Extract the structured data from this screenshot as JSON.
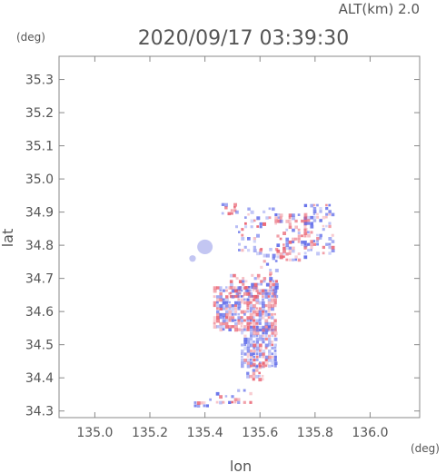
{
  "header": {
    "alt_label": "ALT(km)  2.0",
    "timestamp": "2020/09/17 03:39:30"
  },
  "chart_data": {
    "type": "heatmap",
    "title": "2020/09/17 03:39:30",
    "xlabel": "lon",
    "ylabel": "lat",
    "xunit": "(deg)",
    "yunit": "(deg)",
    "xlim": [
      134.87,
      136.18
    ],
    "ylim": [
      34.28,
      35.37
    ],
    "xticks": [
      135.0,
      135.2,
      135.4,
      135.6,
      135.8,
      136.0
    ],
    "yticks": [
      34.3,
      34.4,
      34.5,
      34.6,
      34.7,
      34.8,
      34.9,
      35.0,
      35.1,
      35.2,
      35.3
    ],
    "xtick_labels": [
      "135.0",
      "135.2",
      "135.4",
      "135.6",
      "135.8",
      "136.0"
    ],
    "ytick_labels": [
      "34.3",
      "34.4",
      "34.5",
      "34.6",
      "34.7",
      "34.8",
      "34.9",
      "35.0",
      "35.1",
      "35.2",
      "35.3"
    ],
    "grid": false,
    "colors": {
      "positive": "#e85a6a",
      "negative": "#5a66e8",
      "neutral": "#b8bcf0"
    },
    "regions": [
      {
        "lon": [
          135.46,
          135.51
        ],
        "lat": [
          34.9,
          34.94
        ],
        "density": 0.5,
        "bias": 0.6
      },
      {
        "lon": [
          135.51,
          135.67
        ],
        "lat": [
          34.86,
          34.92
        ],
        "density": 0.25,
        "bias": 0.4
      },
      {
        "lon": [
          135.66,
          135.76
        ],
        "lat": [
          34.76,
          34.9
        ],
        "density": 0.5,
        "bias": 0.7
      },
      {
        "lon": [
          135.76,
          135.86
        ],
        "lat": [
          34.78,
          34.93
        ],
        "density": 0.45,
        "bias": 0.3
      },
      {
        "lon": [
          135.52,
          135.6
        ],
        "lat": [
          34.78,
          34.86
        ],
        "density": 0.2,
        "bias": 0.3
      },
      {
        "lon": [
          135.6,
          135.66
        ],
        "lat": [
          34.72,
          34.8
        ],
        "density": 0.35,
        "bias": 0.4
      },
      {
        "lon": [
          135.49,
          135.66
        ],
        "lat": [
          34.65,
          34.72
        ],
        "density": 0.55,
        "bias": 0.6
      },
      {
        "lon": [
          135.43,
          135.66
        ],
        "lat": [
          34.55,
          34.68
        ],
        "density": 0.75,
        "bias": 0.6
      },
      {
        "lon": [
          135.53,
          135.66
        ],
        "lat": [
          34.44,
          34.56
        ],
        "density": 0.8,
        "bias": 0.35
      },
      {
        "lon": [
          135.55,
          135.62
        ],
        "lat": [
          34.4,
          34.45
        ],
        "density": 0.5,
        "bias": 0.5
      },
      {
        "lon": [
          135.44,
          135.58
        ],
        "lat": [
          34.33,
          34.37
        ],
        "density": 0.35,
        "bias": 0.45
      },
      {
        "lon": [
          135.36,
          135.44
        ],
        "lat": [
          34.32,
          34.34
        ],
        "density": 0.4,
        "bias": 0.3
      }
    ],
    "blobs": [
      {
        "lon": 135.4,
        "lat": 34.795,
        "rx": 0.028,
        "ry": 0.022
      },
      {
        "lon": 135.355,
        "lat": 34.76,
        "rx": 0.012,
        "ry": 0.01
      }
    ]
  }
}
